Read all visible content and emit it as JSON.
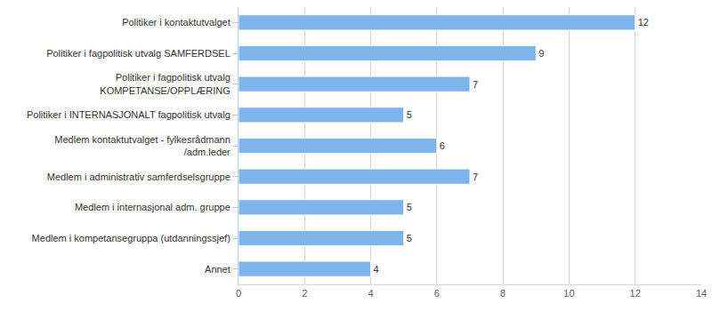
{
  "chart_data": {
    "type": "bar",
    "orientation": "horizontal",
    "categories": [
      "Politiker i kontaktutvalget",
      "Politiker i fagpolitisk utvalg SAMFERDSEL",
      "Politiker i fagpolitisk utvalg KOMPETANSE/OPPLÆRING",
      "Politiker i INTERNASJONALT fagpolitisk utvalg",
      "Medlem kontaktutvalget - fylkesrådmann /adm.leder",
      "Medlem i administrativ samferdselsgruppe",
      "Medlem i internasjonal adm. gruppe",
      "Medlem i kompetansegruppa (utdanningssjef)",
      "Annet"
    ],
    "values": [
      12,
      9,
      7,
      5,
      6,
      7,
      5,
      5,
      4
    ],
    "color": "#7cb5ec",
    "xlim": [
      0,
      14
    ],
    "xticks": [
      0,
      2,
      4,
      6,
      8,
      10,
      12,
      14
    ],
    "grid": true,
    "data_labels": true
  }
}
